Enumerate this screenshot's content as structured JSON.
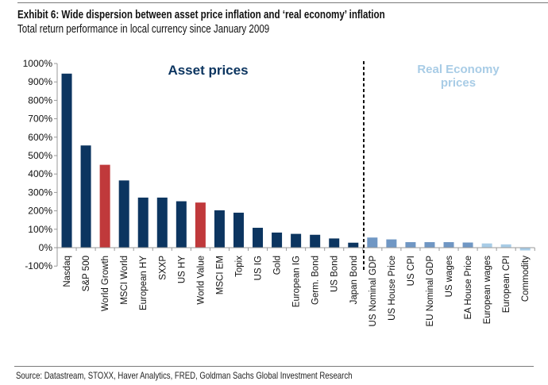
{
  "header": {
    "title": "Exhibit 6: Wide dispersion between asset price inflation and ‘real economy’ inflation",
    "subtitle": "Total return performance in local currency since January 2009"
  },
  "footer": {
    "source": "Source: Datastream, STOXX, Haver Analytics, FRED, Goldman Sachs Global Investment Research"
  },
  "chart_data": {
    "type": "bar",
    "title": "Exhibit 6: Wide dispersion between asset price inflation and ‘real economy’ inflation",
    "subtitle": "Total return performance in local currency since January 2009",
    "ylim": [
      -100,
      1000
    ],
    "yticks": [
      "-100%",
      "0%",
      "100%",
      "200%",
      "300%",
      "400%",
      "500%",
      "600%",
      "700%",
      "800%",
      "900%",
      "1000%"
    ],
    "grid": false,
    "annotations": {
      "asset": "Asset prices",
      "real_line1": "Real Economy",
      "real_line2": "prices"
    },
    "colors": {
      "asset": "#0c3560",
      "highlight": "#c0393b",
      "real_mid": "#7097c4",
      "real_light": "#a8cce6",
      "asset_label": "#0c3560",
      "real_label": "#a8cce6"
    },
    "categories": [
      "Nasdaq",
      "S&P 500",
      "World Growth",
      "MSCI World",
      "European HY",
      "SXXP",
      "US HY",
      "World Value",
      "MSCI EM",
      "Topix",
      "US IG",
      "Gold",
      "European IG",
      "Germ. Bond",
      "US Bond",
      "Japan Bond",
      "US Nominal GDP",
      "US House Price",
      "US CPI",
      "EU Nominal GDP",
      "US wages",
      "EA House Price",
      "European wages",
      "European CPI",
      "Commodity"
    ],
    "values": [
      945,
      555,
      450,
      365,
      272,
      272,
      252,
      245,
      203,
      190,
      108,
      82,
      75,
      70,
      50,
      27,
      55,
      45,
      30,
      30,
      30,
      28,
      23,
      18,
      -15
    ],
    "groups": [
      "asset",
      "asset",
      "highlight",
      "asset",
      "asset",
      "asset",
      "asset",
      "highlight",
      "asset",
      "asset",
      "asset",
      "asset",
      "asset",
      "asset",
      "asset",
      "asset",
      "real_mid",
      "real_mid",
      "real_mid",
      "real_mid",
      "real_mid",
      "real_mid",
      "real_light",
      "real_light",
      "real_light"
    ]
  }
}
